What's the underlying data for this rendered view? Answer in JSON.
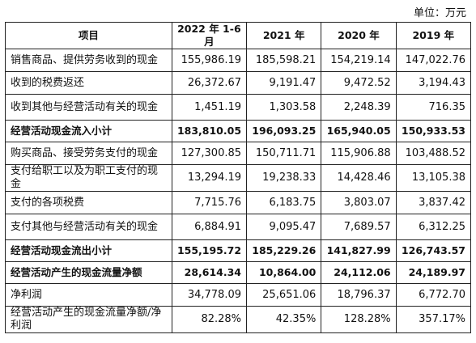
{
  "unit_note": "单位：万元",
  "headers": [
    "项目",
    "2022 年 1-6 月",
    "2021 年",
    "2020 年",
    "2019 年"
  ],
  "rows": [
    {
      "label": "销售商品、提供劳务收到的现金",
      "values": [
        "155,986.19",
        "185,598.21",
        "154,219.14",
        "147,022.76"
      ]
    },
    {
      "label": "收到的税费返还",
      "values": [
        "26,372.67",
        "9,191.47",
        "9,472.52",
        "3,194.43"
      ]
    },
    {
      "label": "收到其他与经营活动有关的现金",
      "values": [
        "1,451.19",
        "1,303.58",
        "2,248.39",
        "716.35"
      ]
    },
    {
      "label": "经营活动现金流入小计",
      "values": [
        "183,810.05",
        "196,093.25",
        "165,940.05",
        "150,933.53"
      ]
    },
    {
      "label": "购买商品、接受劳务支付的现金",
      "values": [
        "127,300.85",
        "150,711.71",
        "115,906.88",
        "103,488.52"
      ]
    },
    {
      "label": "支付给职工以及为职工支付的现金",
      "values": [
        "13,294.19",
        "19,238.33",
        "14,428.46",
        "13,105.38"
      ]
    },
    {
      "label": "支付的各项税费",
      "values": [
        "7,715.76",
        "6,183.75",
        "3,803.07",
        "3,837.42"
      ]
    },
    {
      "label": "支付其他与经营活动有关的现金",
      "values": [
        "6,884.91",
        "9,095.47",
        "7,689.57",
        "6,312.25"
      ]
    },
    {
      "label": "经营活动现金流出小计",
      "values": [
        "155,195.72",
        "185,229.26",
        "141,827.99",
        "126,743.57"
      ]
    },
    {
      "label": "经营活动产生的现金流量净额",
      "values": [
        "28,614.34",
        "10,864.00",
        "24,112.06",
        "24,189.97"
      ]
    },
    {
      "label": "净利润",
      "values": [
        "34,778.09",
        "25,651.06",
        "18,796.37",
        "6,772.70"
      ]
    },
    {
      "label": "经营活动产生的现金流量净额/净利润",
      "values": [
        "82.28%",
        "42.35%",
        "128.28%",
        "357.17%"
      ]
    }
  ]
}
